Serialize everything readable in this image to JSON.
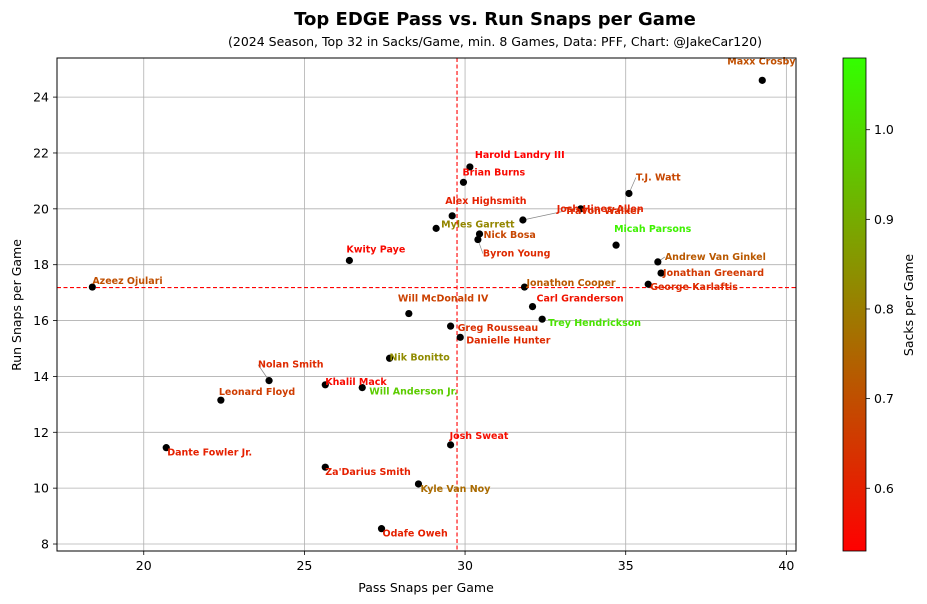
{
  "chart_data": {
    "type": "scatter",
    "title": "Top EDGE Pass vs. Run Snaps per Game",
    "subtitle": "(2024 Season, Top 32 in Sacks/Game, min. 8 Games, Data: PFF, Chart: @JakeCar120)",
    "xlabel": "Pass Snaps per Game",
    "ylabel": "Run Snaps per Game",
    "xlim": [
      17.3,
      40.3
    ],
    "ylim": [
      7.75,
      25.4
    ],
    "xticks": [
      20,
      25,
      30,
      35,
      40
    ],
    "yticks": [
      8,
      10,
      12,
      14,
      16,
      18,
      20,
      22,
      24
    ],
    "grid": true,
    "mean_lines": {
      "x": 29.75,
      "y": 17.18,
      "color": "#ff0000"
    },
    "colorbar": {
      "label": "Sacks per Game",
      "min": 0.53,
      "max": 1.08,
      "ticks": [
        0.6,
        0.7,
        0.8,
        0.9,
        1.0
      ],
      "tick_labels": [
        "0.6",
        "0.7",
        "0.8",
        "0.9",
        "1.0"
      ],
      "colors": [
        "#ff0000",
        "#33ff00"
      ]
    },
    "points": [
      {
        "name": "Maxx Crosby",
        "x": 39.25,
        "y": 24.6,
        "sacks": 0.7
      },
      {
        "name": "Harold Landry III",
        "x": 30.15,
        "y": 21.5,
        "sacks": 0.53
      },
      {
        "name": "Brian Burns",
        "x": 29.95,
        "y": 20.95,
        "sacks": 0.55
      },
      {
        "name": "T.J. Watt",
        "x": 35.1,
        "y": 20.55,
        "sacks": 0.68
      },
      {
        "name": "Alex Highsmith",
        "x": 29.6,
        "y": 19.75,
        "sacks": 0.6
      },
      {
        "name": "Josh Hines-Allen",
        "x": 33.6,
        "y": 20.0,
        "sacks": 0.6
      },
      {
        "name": "Travon Walker",
        "x": 31.8,
        "y": 19.6,
        "sacks": 0.62
      },
      {
        "name": "Myles Garrett",
        "x": 29.1,
        "y": 19.3,
        "sacks": 0.82
      },
      {
        "name": "Nick Bosa",
        "x": 30.45,
        "y": 19.1,
        "sacks": 0.68
      },
      {
        "name": "Byron Young",
        "x": 30.4,
        "y": 18.9,
        "sacks": 0.62
      },
      {
        "name": "Micah Parsons",
        "x": 34.7,
        "y": 18.7,
        "sacks": 1.05
      },
      {
        "name": "Kwity Paye",
        "x": 26.4,
        "y": 18.15,
        "sacks": 0.55
      },
      {
        "name": "Andrew Van Ginkel",
        "x": 36.0,
        "y": 18.1,
        "sacks": 0.72
      },
      {
        "name": "Jonathan Greenard",
        "x": 36.1,
        "y": 17.7,
        "sacks": 0.65
      },
      {
        "name": "Azeez Ojulari",
        "x": 18.4,
        "y": 17.2,
        "sacks": 0.7
      },
      {
        "name": "Jonathon Cooper",
        "x": 31.85,
        "y": 17.2,
        "sacks": 0.72
      },
      {
        "name": "George Karlaftis",
        "x": 35.7,
        "y": 17.3,
        "sacks": 0.62
      },
      {
        "name": "Carl Granderson",
        "x": 32.1,
        "y": 16.5,
        "sacks": 0.57
      },
      {
        "name": "Will McDonald IV",
        "x": 28.25,
        "y": 16.25,
        "sacks": 0.67
      },
      {
        "name": "Trey Hendrickson",
        "x": 32.4,
        "y": 16.05,
        "sacks": 1.02
      },
      {
        "name": "Greg Rousseau",
        "x": 29.55,
        "y": 15.8,
        "sacks": 0.63
      },
      {
        "name": "Danielle Hunter",
        "x": 29.85,
        "y": 15.4,
        "sacks": 0.62
      },
      {
        "name": "Nik Bonitto",
        "x": 27.65,
        "y": 14.65,
        "sacks": 0.83
      },
      {
        "name": "Nolan Smith",
        "x": 23.9,
        "y": 13.85,
        "sacks": 0.62
      },
      {
        "name": "Khalil Mack",
        "x": 25.65,
        "y": 13.7,
        "sacks": 0.55
      },
      {
        "name": "Will Anderson Jr.",
        "x": 26.8,
        "y": 13.6,
        "sacks": 0.97
      },
      {
        "name": "Leonard Floyd",
        "x": 22.4,
        "y": 13.15,
        "sacks": 0.66
      },
      {
        "name": "Josh Sweat",
        "x": 29.55,
        "y": 11.55,
        "sacks": 0.56
      },
      {
        "name": "Dante Fowler Jr.",
        "x": 20.7,
        "y": 11.45,
        "sacks": 0.6
      },
      {
        "name": "Za'Darius Smith",
        "x": 25.65,
        "y": 10.75,
        "sacks": 0.6
      },
      {
        "name": "Kyle Van Noy",
        "x": 28.55,
        "y": 10.15,
        "sacks": 0.76
      },
      {
        "name": "Odafe Oweh",
        "x": 27.4,
        "y": 8.55,
        "sacks": 0.6
      }
    ]
  }
}
